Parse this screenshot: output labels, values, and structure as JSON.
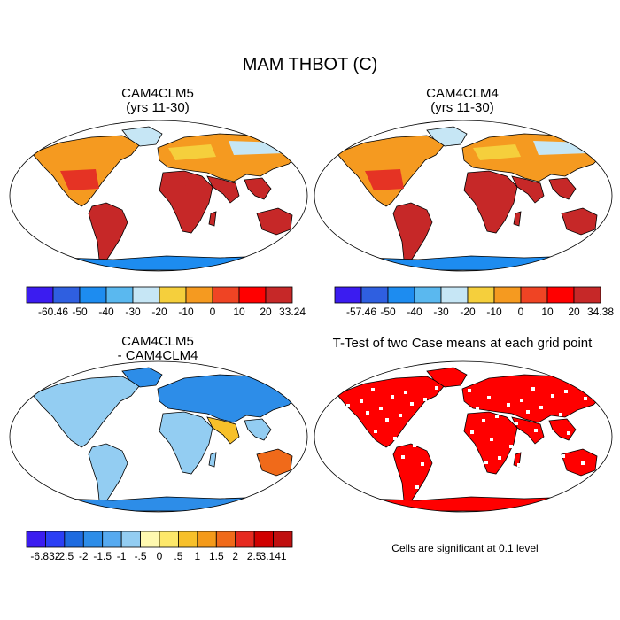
{
  "figure": {
    "title": "MAM THBOT (C)"
  },
  "panels": [
    {
      "id": "cam4clm5",
      "title_line1": "CAM4CLM5",
      "title_line2": "(yrs 11-30)"
    },
    {
      "id": "cam4clm4",
      "title_line1": "CAM4CLM4",
      "title_line2": "(yrs 11-30)"
    },
    {
      "id": "diff",
      "title_line1": "CAM4CLM5",
      "title_line2": "- CAM4CLM4"
    },
    {
      "id": "ttest",
      "title_line1": "T-Test of two Case means at each grid point",
      "title_line2": ""
    }
  ],
  "colorbars": {
    "cam4clm5": {
      "labels": [
        "-60.46",
        "-50",
        "-40",
        "-30",
        "-20",
        "-10",
        "0",
        "10",
        "20",
        "33.24"
      ],
      "colors": [
        "#3b1cf0",
        "#2f5fe0",
        "#1d8cf0",
        "#5ab8ef",
        "#c6e6f5",
        "#f5cf3c",
        "#f59a20",
        "#ef4424",
        "#ff0000",
        "#c62828"
      ]
    },
    "cam4clm4": {
      "labels": [
        "-57.46",
        "-50",
        "-40",
        "-30",
        "-20",
        "-10",
        "0",
        "10",
        "20",
        "34.38"
      ],
      "colors": [
        "#3b1cf0",
        "#2f5fe0",
        "#1d8cf0",
        "#5ab8ef",
        "#c6e6f5",
        "#f5cf3c",
        "#f59a20",
        "#ef4424",
        "#ff0000",
        "#c62828"
      ]
    },
    "diff": {
      "labels": [
        "-6.832",
        "-2.5",
        "-2",
        "-1.5",
        "-1",
        "-.5",
        "0",
        ".5",
        "1",
        "1.5",
        "2",
        "2.5",
        "3.141"
      ],
      "colors": [
        "#3b1cf0",
        "#2b3ff5",
        "#1e6be0",
        "#2d8de8",
        "#56aaf0",
        "#93cdf2",
        "#fff9b0",
        "#fde86a",
        "#f7c02a",
        "#f49a1a",
        "#f06a1a",
        "#e62a20",
        "#d00000",
        "#c01010"
      ]
    }
  },
  "map_colors": {
    "land_warm": "#c62828",
    "land_hot": "#e53324",
    "land_mid": "#f59a20",
    "land_cool": "#f5cf3c",
    "land_cold": "#c6e6f5",
    "ice": "#1d8cf0",
    "ice_deep": "#2f5fe0",
    "diff_neg": "#93cdf2",
    "diff_neg_strong": "#2d8de8",
    "diff_pos": "#f7c02a",
    "diff_pos_strong": "#f06a1a",
    "ttest_sig": "#ff0000"
  },
  "note": "Cells are significant at 0.1 level"
}
